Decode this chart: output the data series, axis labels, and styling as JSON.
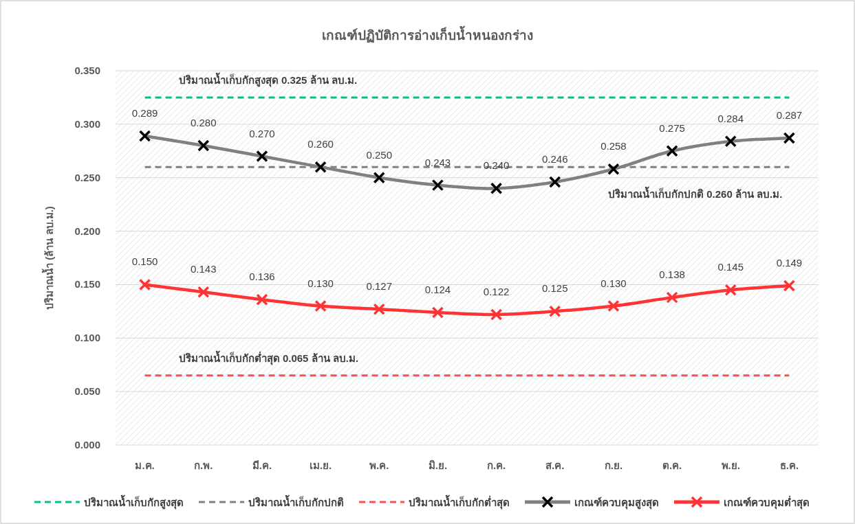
{
  "chart_data": {
    "type": "line",
    "title": "เกณฑ์ปฏิบัติการอ่างเก็บน้ำหนองกร่าง",
    "ylabel": "ปริมาณน้ำ (ล้าน ลบ.ม.)",
    "categories": [
      "ม.ค.",
      "ก.พ.",
      "มี.ค.",
      "เม.ย.",
      "พ.ค.",
      "มิ.ย.",
      "ก.ค.",
      "ส.ค.",
      "ก.ย.",
      "ต.ค.",
      "พ.ย.",
      "ธ.ค."
    ],
    "series": [
      {
        "name": "ปริมาณน้ำเก็บกักสูงสุด",
        "color": "#00c08b",
        "line_style": "dashed",
        "marker": "none",
        "values": [
          0.325,
          0.325,
          0.325,
          0.325,
          0.325,
          0.325,
          0.325,
          0.325,
          0.325,
          0.325,
          0.325,
          0.325
        ]
      },
      {
        "name": "ปริมาณน้ำเก็บกักปกติ",
        "color": "#808080",
        "line_style": "dashed",
        "marker": "none",
        "values": [
          0.26,
          0.26,
          0.26,
          0.26,
          0.26,
          0.26,
          0.26,
          0.26,
          0.26,
          0.26,
          0.26,
          0.26
        ]
      },
      {
        "name": "ปริมาณน้ำเก็บกักต่ำสุด",
        "color": "#ff4d4d",
        "line_style": "dashed",
        "marker": "none",
        "values": [
          0.065,
          0.065,
          0.065,
          0.065,
          0.065,
          0.065,
          0.065,
          0.065,
          0.065,
          0.065,
          0.065,
          0.065
        ]
      },
      {
        "name": "เกณฑ์ควบคุมสูงสุด",
        "color": "#808080",
        "line_style": "solid",
        "marker": "cross",
        "values": [
          0.289,
          0.28,
          0.27,
          0.26,
          0.25,
          0.243,
          0.24,
          0.246,
          0.258,
          0.275,
          0.284,
          0.287
        ],
        "value_labels": [
          "0.289",
          "0.280",
          "0.270",
          "0.260",
          "0.250",
          "0.243",
          "0.240",
          "0.246",
          "0.258",
          "0.275",
          "0.284",
          "0.287"
        ]
      },
      {
        "name": "เกณฑ์ควบคุมต่ำสุด",
        "color": "#ff3333",
        "line_style": "solid",
        "marker": "cross",
        "values": [
          0.15,
          0.143,
          0.136,
          0.13,
          0.127,
          0.124,
          0.122,
          0.125,
          0.13,
          0.138,
          0.145,
          0.149
        ],
        "value_labels": [
          "0.150",
          "0.143",
          "0.136",
          "0.130",
          "0.127",
          "0.124",
          "0.122",
          "0.125",
          "0.130",
          "0.138",
          "0.145",
          "0.149"
        ]
      }
    ],
    "annotations": [
      {
        "text": "ปริมาณน้ำเก็บกักสูงสุด 0.325 ล้าน ลบ.ม.",
        "x": "ก.พ.",
        "y": 0.325
      },
      {
        "text": "ปริมาณน้ำเก็บกักปกติ 0.260 ล้าน ลบ.ม.",
        "x": "ธ.ค.",
        "y": 0.26
      },
      {
        "text": "ปริมาณน้ำเก็บกักต่ำสุด 0.065 ล้าน ลบ.ม.",
        "x": "ก.พ.",
        "y": 0.065
      }
    ],
    "ylim": [
      0,
      0.35
    ],
    "yticks": [
      {
        "value": 0,
        "label": "0.000"
      },
      {
        "value": 0.05,
        "label": "0.050"
      },
      {
        "value": 0.1,
        "label": "0.100"
      },
      {
        "value": 0.15,
        "label": "0.150"
      },
      {
        "value": 0.2,
        "label": "0.200"
      },
      {
        "value": 0.25,
        "label": "0.250"
      },
      {
        "value": 0.3,
        "label": "0.300"
      },
      {
        "value": 0.35,
        "label": "0.350"
      }
    ],
    "grid": "y",
    "legend": "bottom"
  }
}
